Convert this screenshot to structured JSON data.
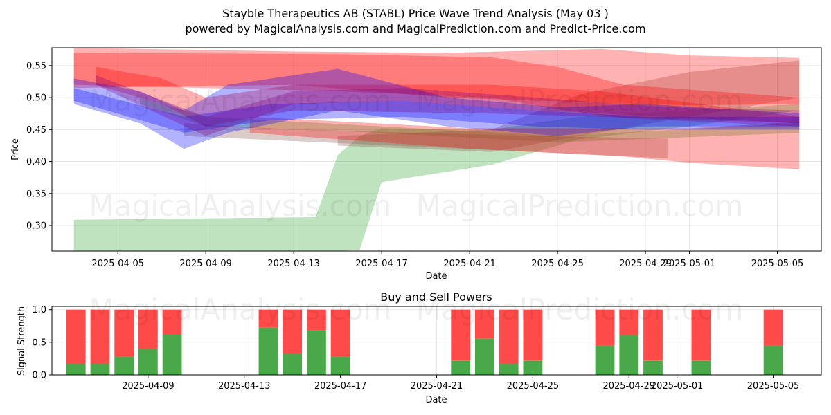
{
  "figure": {
    "title_line1": "Stayble Therapeutics AB (STABL) Price Wave Trend Analysis (May 03 )",
    "title_line2": "powered by MagicalAnalysis.com and MagicalPrediction.com and Predict-Price.com",
    "watermarks": [
      "MagicalAnalysis.com",
      "MagicalPrediction.com"
    ]
  },
  "chart_data": [
    {
      "type": "area",
      "xlabel": "Date",
      "ylabel": "Price",
      "xlim": [
        "2025-04-02",
        "2025-05-07"
      ],
      "ylim": [
        0.26,
        0.578
      ],
      "x_ticks": [
        "2025-04-05",
        "2025-04-09",
        "2025-04-13",
        "2025-04-17",
        "2025-04-21",
        "2025-04-25",
        "2025-04-29",
        "2025-05-01",
        "2025-05-05"
      ],
      "y_ticks": [
        0.3,
        0.35,
        0.4,
        0.45,
        0.5,
        0.55
      ],
      "grid": true,
      "bands": [
        {
          "color": "#2ca02c",
          "x": [
            "2025-04-03",
            "2025-04-14",
            "2025-04-15",
            "2025-04-16",
            "2025-04-17",
            "2025-04-22",
            "2025-04-26",
            "2025-05-01",
            "2025-05-06"
          ],
          "upper": [
            0.309,
            0.313,
            0.41,
            0.44,
            0.452,
            0.45,
            0.47,
            0.48,
            0.49
          ],
          "lower": [
            0.26,
            0.26,
            0.26,
            0.262,
            0.368,
            0.395,
            0.435,
            0.455,
            0.48
          ]
        },
        {
          "color": "#2ca02c",
          "x": [
            "2025-04-06",
            "2025-04-09",
            "2025-04-17",
            "2025-04-25",
            "2025-05-06"
          ],
          "upper": [
            0.5,
            0.47,
            0.455,
            0.44,
            0.46
          ],
          "lower": [
            0.49,
            0.455,
            0.445,
            0.43,
            0.445
          ]
        },
        {
          "color": "#8c564b",
          "x": [
            "2025-04-15",
            "2025-04-22",
            "2025-04-26",
            "2025-05-01",
            "2025-05-06"
          ],
          "upper": [
            0.44,
            0.45,
            0.505,
            0.54,
            0.558
          ],
          "lower": [
            0.425,
            0.415,
            0.44,
            0.47,
            0.5
          ]
        },
        {
          "color": "#8c564b",
          "x": [
            "2025-04-08",
            "2025-04-13",
            "2025-04-24",
            "2025-04-30"
          ],
          "upper": [
            0.46,
            0.45,
            0.44,
            0.436
          ],
          "lower": [
            0.44,
            0.432,
            0.415,
            0.405
          ]
        },
        {
          "color": "#ff0000",
          "x": [
            "2025-04-03",
            "2025-04-13",
            "2025-04-20",
            "2025-04-27",
            "2025-05-01",
            "2025-05-06"
          ],
          "upper": [
            0.578,
            0.572,
            0.57,
            0.576,
            0.566,
            0.562
          ],
          "lower": [
            0.515,
            0.52,
            0.5,
            0.492,
            0.488,
            0.49
          ]
        },
        {
          "color": "#ff0000",
          "x": [
            "2025-04-03",
            "2025-04-15",
            "2025-04-22",
            "2025-04-25",
            "2025-04-28",
            "2025-05-06"
          ],
          "upper": [
            0.57,
            0.568,
            0.563,
            0.548,
            0.52,
            0.5
          ],
          "lower": [
            0.52,
            0.51,
            0.5,
            0.482,
            0.468,
            0.455
          ]
        },
        {
          "color": "#ff0000",
          "x": [
            "2025-04-11",
            "2025-04-21",
            "2025-04-28",
            "2025-05-01",
            "2025-05-06"
          ],
          "upper": [
            0.47,
            0.452,
            0.452,
            0.452,
            0.462
          ],
          "lower": [
            0.445,
            0.42,
            0.408,
            0.398,
            0.388
          ]
        },
        {
          "color": "#ff0000",
          "x": [
            "2025-04-04",
            "2025-04-07",
            "2025-04-09",
            "2025-04-13",
            "2025-04-22",
            "2025-04-27",
            "2025-05-06"
          ],
          "upper": [
            0.548,
            0.53,
            0.5,
            0.52,
            0.52,
            0.51,
            0.47
          ],
          "lower": [
            0.52,
            0.49,
            0.455,
            0.48,
            0.475,
            0.47,
            0.46
          ]
        },
        {
          "color": "#0000ff",
          "x": [
            "2025-04-03",
            "2025-04-06",
            "2025-04-08",
            "2025-04-10",
            "2025-04-15",
            "2025-04-20",
            "2025-04-25",
            "2025-04-29",
            "2025-05-06"
          ],
          "upper": [
            0.53,
            0.51,
            0.48,
            0.52,
            0.545,
            0.5,
            0.485,
            0.49,
            0.475
          ],
          "lower": [
            0.49,
            0.46,
            0.42,
            0.445,
            0.48,
            0.455,
            0.44,
            0.455,
            0.455
          ]
        },
        {
          "color": "#0000ff",
          "x": [
            "2025-04-03",
            "2025-04-08",
            "2025-04-12",
            "2025-04-18",
            "2025-04-24",
            "2025-04-29",
            "2025-05-06"
          ],
          "upper": [
            0.515,
            0.47,
            0.49,
            0.495,
            0.48,
            0.47,
            0.47
          ],
          "lower": [
            0.495,
            0.445,
            0.465,
            0.47,
            0.455,
            0.45,
            0.45
          ]
        },
        {
          "color": "#800080",
          "x": [
            "2025-04-04",
            "2025-04-09",
            "2025-04-13",
            "2025-04-18",
            "2025-04-24",
            "2025-04-30",
            "2025-05-06"
          ],
          "upper": [
            0.535,
            0.47,
            0.51,
            0.515,
            0.5,
            0.485,
            0.48
          ],
          "lower": [
            0.52,
            0.44,
            0.49,
            0.495,
            0.48,
            0.47,
            0.46
          ]
        }
      ]
    },
    {
      "type": "bar",
      "title": "Buy and Sell Powers",
      "xlabel": "Date",
      "ylabel": "Signal Strength",
      "xlim": [
        "2025-04-05",
        "2025-05-07"
      ],
      "ylim": [
        0,
        1.05
      ],
      "x_ticks": [
        "2025-04-09",
        "2025-04-13",
        "2025-04-17",
        "2025-04-21",
        "2025-04-25",
        "2025-04-29",
        "2025-05-01",
        "2025-05-05"
      ],
      "y_ticks": [
        "0.0",
        "0.5",
        "1.0"
      ],
      "grid": true,
      "series": [
        {
          "name": "buy",
          "color": "#4aa84a"
        },
        {
          "name": "sell",
          "color": "#ff4a4a"
        }
      ],
      "x": [
        "2025-04-06",
        "2025-04-07",
        "2025-04-08",
        "2025-04-09",
        "2025-04-10",
        "2025-04-14",
        "2025-04-15",
        "2025-04-16",
        "2025-04-17",
        "2025-04-22",
        "2025-04-23",
        "2025-04-24",
        "2025-04-25",
        "2025-04-28",
        "2025-04-29",
        "2025-04-30",
        "2025-05-02",
        "2025-05-05"
      ],
      "buy": [
        0.17,
        0.17,
        0.28,
        0.4,
        0.62,
        0.73,
        0.33,
        0.68,
        0.28,
        0.22,
        0.56,
        0.17,
        0.22,
        0.45,
        0.61,
        0.22,
        0.22,
        0.45
      ],
      "total": [
        1,
        1,
        1,
        1,
        1,
        1,
        1,
        1,
        1,
        1,
        1,
        1,
        1,
        1,
        1,
        1,
        1,
        1
      ]
    }
  ]
}
